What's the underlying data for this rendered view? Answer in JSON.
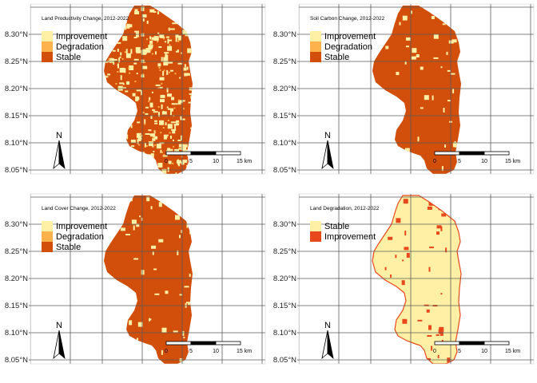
{
  "figure": {
    "latitude_ticks": [
      "8.30°N",
      "8.25°N",
      "8.20°N",
      "8.15°N",
      "8.10°N",
      "8.05°N"
    ],
    "north_label": "N",
    "scale_bar": {
      "labels": [
        "0",
        "5",
        "10",
        "15 km"
      ],
      "unit": "km"
    },
    "panels": [
      {
        "title": "Land Productivity Change, 2012-2022",
        "fill": "#d14e0b",
        "stroke": "none",
        "legend": [
          {
            "label": "Improvement",
            "color": "#fff0a5"
          },
          {
            "label": "Degradation",
            "color": "#fdb24c"
          },
          {
            "label": "Stable",
            "color": "#d14e0b"
          }
        ],
        "patch_color": "#fff0a5",
        "patch_density": "high"
      },
      {
        "title": "Soil Carbon Change, 2012-2022",
        "fill": "#d14e0b",
        "stroke": "none",
        "legend": [
          {
            "label": "Improvement",
            "color": "#fff0a5"
          },
          {
            "label": "Degradation",
            "color": "#fdb24c"
          },
          {
            "label": "Stable",
            "color": "#d14e0b"
          }
        ],
        "patch_color": "#fff0a5",
        "patch_density": "low"
      },
      {
        "title": "Land Cover Change, 2012-2022",
        "fill": "#d14e0b",
        "stroke": "none",
        "legend": [
          {
            "label": "Improvement",
            "color": "#fff0a5"
          },
          {
            "label": "Degradation",
            "color": "#fdb24c"
          },
          {
            "label": "Stable",
            "color": "#d14e0b"
          }
        ],
        "patch_color": "#fff0a5",
        "patch_density": "low"
      },
      {
        "title": "Land Degradation, 2012-2022",
        "fill": "#fff0a5",
        "stroke": "#e8491c",
        "legend": [
          {
            "label": "Stable",
            "color": "#fff0a5"
          },
          {
            "label": "Improvement",
            "color": "#e8491c"
          }
        ],
        "patch_color": "#e8491c",
        "patch_density": "low"
      }
    ]
  }
}
